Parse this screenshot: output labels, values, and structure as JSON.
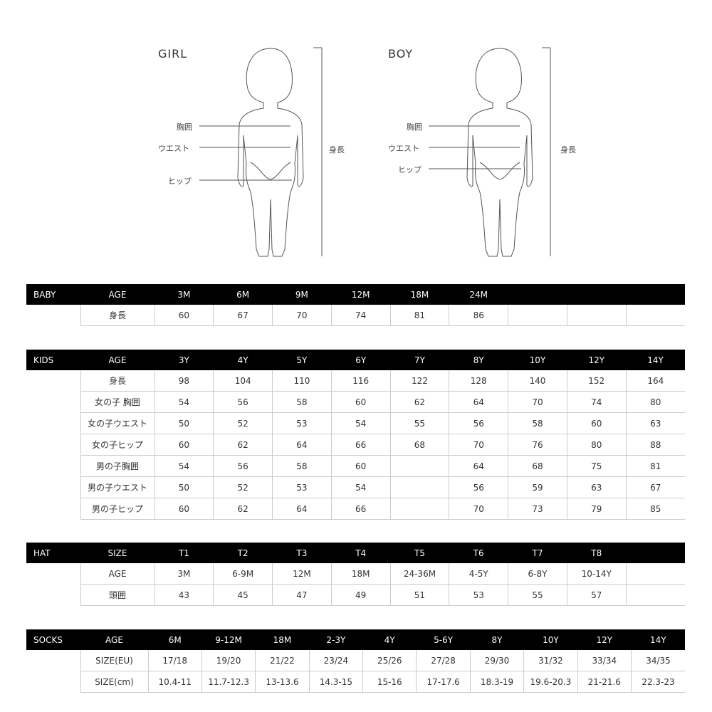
{
  "figures": {
    "girl": {
      "title": "GIRL",
      "chest": "胸囲",
      "waist": "ウエスト",
      "hip": "ヒップ",
      "height": "身長"
    },
    "boy": {
      "title": "BOY",
      "chest": "胸囲",
      "waist": "ウエスト",
      "hip": "ヒップ",
      "height": "身長"
    }
  },
  "tables": [
    {
      "key": "baby",
      "section": "BABY",
      "header_label": "AGE",
      "columns": [
        "3M",
        "6M",
        "9M",
        "12M",
        "18M",
        "24M",
        "",
        "",
        ""
      ],
      "rows": [
        {
          "label": "身長",
          "values": [
            "60",
            "67",
            "70",
            "74",
            "81",
            "86",
            "",
            "",
            ""
          ]
        }
      ]
    },
    {
      "key": "kids",
      "section": "KIDS",
      "header_label": "AGE",
      "columns": [
        "3Y",
        "4Y",
        "5Y",
        "6Y",
        "7Y",
        "8Y",
        "10Y",
        "12Y",
        "14Y"
      ],
      "rows": [
        {
          "label": "身長",
          "values": [
            "98",
            "104",
            "110",
            "116",
            "122",
            "128",
            "140",
            "152",
            "164"
          ]
        },
        {
          "label": "女の子 胸囲",
          "values": [
            "54",
            "56",
            "58",
            "60",
            "62",
            "64",
            "70",
            "74",
            "80"
          ]
        },
        {
          "label": "女の子ウエスト",
          "values": [
            "50",
            "52",
            "53",
            "54",
            "55",
            "56",
            "58",
            "60",
            "63"
          ]
        },
        {
          "label": "女の子ヒップ",
          "values": [
            "60",
            "62",
            "64",
            "66",
            "68",
            "70",
            "76",
            "80",
            "88"
          ]
        },
        {
          "label": "男の子胸囲",
          "values": [
            "54",
            "56",
            "58",
            "60",
            "",
            "64",
            "68",
            "75",
            "81"
          ]
        },
        {
          "label": "男の子ウエスト",
          "values": [
            "50",
            "52",
            "53",
            "54",
            "",
            "56",
            "59",
            "63",
            "67"
          ]
        },
        {
          "label": "男の子ヒップ",
          "values": [
            "60",
            "62",
            "64",
            "66",
            "",
            "70",
            "73",
            "79",
            "85"
          ]
        }
      ]
    },
    {
      "key": "hat",
      "section": "HAT",
      "header_label": "SIZE",
      "columns": [
        "T1",
        "T2",
        "T3",
        "T4",
        "T5",
        "T6",
        "T7",
        "T8",
        ""
      ],
      "rows": [
        {
          "label": "AGE",
          "values": [
            "3M",
            "6-9M",
            "12M",
            "18M",
            "24-36M",
            "4-5Y",
            "6-8Y",
            "10-14Y",
            ""
          ]
        },
        {
          "label": "頭囲",
          "values": [
            "43",
            "45",
            "47",
            "49",
            "51",
            "53",
            "55",
            "57",
            ""
          ]
        }
      ]
    },
    {
      "key": "socks",
      "section": "SOCKS",
      "header_label": "AGE",
      "columns": [
        "6M",
        "9-12M",
        "18M",
        "2-3Y",
        "4Y",
        "5-6Y",
        "8Y",
        "10Y",
        "12Y",
        "14Y"
      ],
      "rows": [
        {
          "label": "SIZE(EU)",
          "values": [
            "17/18",
            "19/20",
            "21/22",
            "23/24",
            "25/26",
            "27/28",
            "29/30",
            "31/32",
            "33/34",
            "34/35"
          ]
        },
        {
          "label": "SIZE(cm)",
          "values": [
            "10.4-11",
            "11.7-12.3",
            "13-13.6",
            "14.3-15",
            "15-16",
            "17-17.6",
            "18.3-19",
            "19.6-20.3",
            "21-21.6",
            "22.3-23"
          ]
        }
      ]
    }
  ]
}
